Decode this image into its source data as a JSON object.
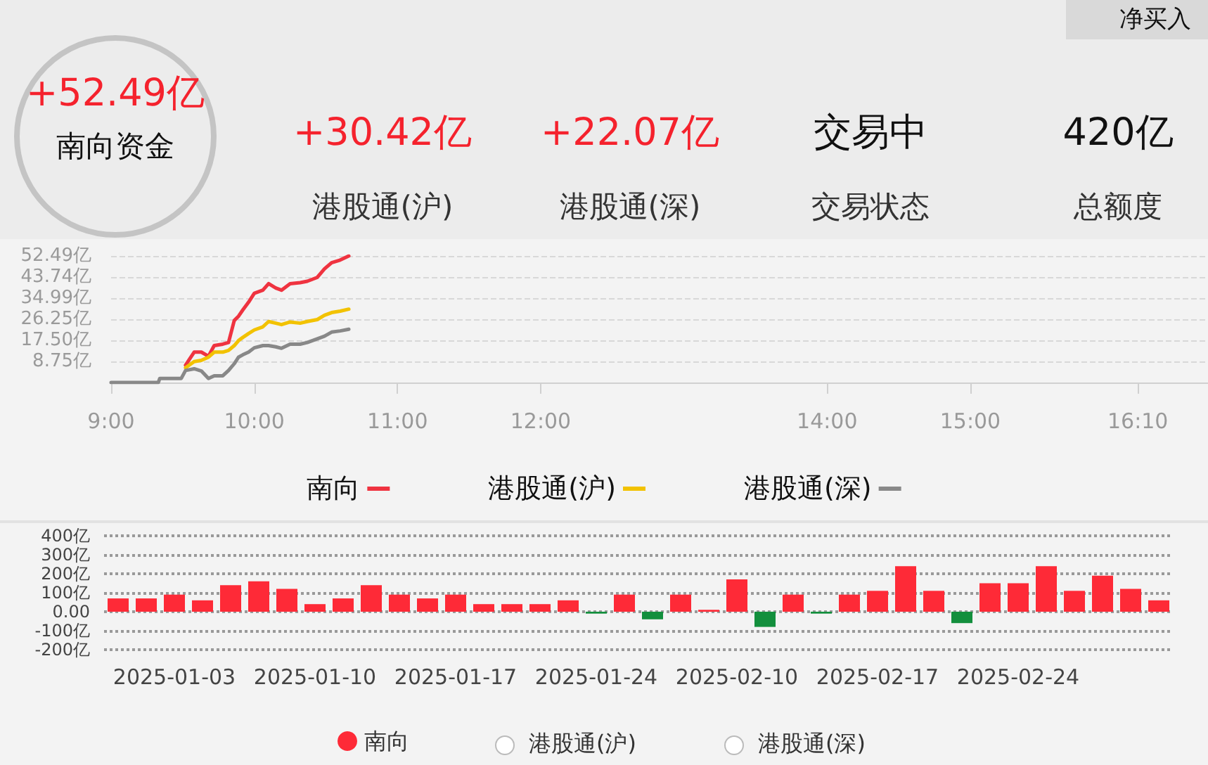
{
  "chart_data": [
    {
      "type": "other",
      "annotations": [
        "+52.49亿",
        "南向资金",
        "+30.42亿",
        "港股通(沪)",
        "+22.07亿",
        "港股通(深)",
        "交易中",
        "交易状态",
        "420亿",
        "总额度",
        "净买入"
      ],
      "colors": [
        "#f5222d",
        "#111111",
        "#f5222d",
        "#333333",
        "#f5222d",
        "#333333",
        "#111111",
        "#333333",
        "#111111",
        "#333333",
        "#111111"
      ]
    },
    {
      "type": "line",
      "legend": "bottom",
      "grid": "y",
      "x": [
        9,
        9.33,
        9.34,
        9.49,
        9.52,
        9.58,
        9.63,
        9.68,
        9.72,
        9.78,
        9.82,
        9.86,
        9.89,
        9.92,
        9.96,
        10.0,
        10.06,
        10.1,
        10.15,
        10.19,
        10.25,
        10.32,
        10.37,
        10.44,
        10.49,
        10.54,
        10.6,
        10.66
      ],
      "xlim": [
        9,
        16.66
      ],
      "xticks": [
        {
          "value": 9,
          "label": "9:00"
        },
        {
          "value": 10,
          "label": "10:00"
        },
        {
          "value": 11,
          "label": "11:00"
        },
        {
          "value": 12,
          "label": "12:00"
        },
        {
          "value": 14,
          "label": "14:00"
        },
        {
          "value": 15,
          "label": "15:00"
        },
        {
          "value": 16.17,
          "label": "16:10"
        }
      ],
      "ylim": [
        0,
        52.49
      ],
      "yticks": [
        {
          "value": 0,
          "label": null
        },
        {
          "value": 8.75,
          "label": "8.75亿"
        },
        {
          "value": 17.5,
          "label": "17.50亿"
        },
        {
          "value": 26.25,
          "label": "26.25亿"
        },
        {
          "value": 34.99,
          "label": "34.99亿"
        },
        {
          "value": 43.74,
          "label": "43.74亿"
        },
        {
          "value": 52.49,
          "label": "52.49亿"
        }
      ],
      "series": [
        {
          "name": "南向",
          "color": "#ef3340",
          "values": [
            null,
            null,
            null,
            null,
            7.2,
            12.6,
            12.6,
            10.9,
            15.3,
            15.9,
            16.6,
            25.7,
            27.5,
            30.1,
            33.3,
            37.0,
            38.3,
            41.0,
            39.2,
            38.3,
            41.0,
            41.4,
            42.0,
            43.6,
            47.1,
            49.7,
            50.8,
            52.49
          ]
        },
        {
          "name": "港股通(沪)",
          "color": "#f2c200",
          "values": [
            null,
            null,
            null,
            null,
            6.1,
            8.7,
            9.2,
            10.5,
            12.6,
            12.6,
            13.3,
            15.3,
            17.4,
            18.7,
            20.3,
            21.8,
            23.1,
            25.3,
            24.6,
            24.0,
            25.1,
            24.6,
            25.3,
            26.1,
            27.9,
            29.0,
            29.6,
            30.42
          ]
        },
        {
          "name": "港股通(深)",
          "color": "#888888",
          "values": [
            0,
            0,
            1.7,
            1.7,
            5.0,
            5.7,
            4.8,
            1.7,
            2.8,
            2.8,
            5.0,
            7.8,
            10.5,
            11.5,
            12.6,
            14.4,
            15.3,
            15.3,
            14.8,
            14.2,
            15.9,
            15.9,
            16.6,
            18.1,
            19.2,
            20.9,
            21.4,
            22.07
          ]
        }
      ]
    },
    {
      "type": "bar",
      "legend": "bottom",
      "grid": "y",
      "categories": [
        null,
        null,
        "2025-01-03",
        null,
        null,
        null,
        null,
        "2025-01-10",
        null,
        null,
        null,
        null,
        "2025-01-17",
        null,
        null,
        null,
        null,
        "2025-01-24",
        null,
        null,
        null,
        null,
        "2025-02-10",
        null,
        null,
        null,
        null,
        "2025-02-17",
        null,
        null,
        null,
        null,
        "2025-02-24",
        null,
        null,
        null,
        null,
        null
      ],
      "ylim": [
        -200,
        400
      ],
      "yticks": [
        {
          "value": -200,
          "label": "-200亿"
        },
        {
          "value": -100,
          "label": "-100亿"
        },
        {
          "value": 0,
          "label": "0.00"
        },
        {
          "value": 100,
          "label": "100亿"
        },
        {
          "value": 200,
          "label": "200亿"
        },
        {
          "value": 300,
          "label": "300亿"
        },
        {
          "value": 400,
          "label": "400亿"
        }
      ],
      "series": [
        {
          "name": "南向",
          "color": "#fe2a37",
          "values": [
            70,
            70,
            90,
            60,
            140,
            160,
            120,
            40,
            70,
            140,
            90,
            70,
            90,
            40,
            40,
            40,
            60,
            -10,
            90,
            -40,
            90,
            10,
            170,
            -80,
            90,
            -10,
            90,
            110,
            240,
            110,
            -60,
            150,
            150,
            240,
            110,
            190,
            120,
            60
          ],
          "colors": [
            "#fe2a37",
            "#fe2a37",
            "#fe2a37",
            "#fe2a37",
            "#fe2a37",
            "#fe2a37",
            "#fe2a37",
            "#fe2a37",
            "#fe2a37",
            "#fe2a37",
            "#fe2a37",
            "#fe2a37",
            "#fe2a37",
            "#fe2a37",
            "#fe2a37",
            "#fe2a37",
            "#fe2a37",
            "#138f3d",
            "#fe2a37",
            "#138f3d",
            "#fe2a37",
            "#fe2a37",
            "#fe2a37",
            "#138f3d",
            "#fe2a37",
            "#138f3d",
            "#fe2a37",
            "#fe2a37",
            "#fe2a37",
            "#fe2a37",
            "#138f3d",
            "#fe2a37",
            "#fe2a37",
            "#fe2a37",
            "#fe2a37",
            "#fe2a37",
            "#fe2a37",
            "#fe2a37"
          ]
        }
      ],
      "annotations": [
        "港股通(沪)",
        "港股通(深)"
      ]
    }
  ]
}
